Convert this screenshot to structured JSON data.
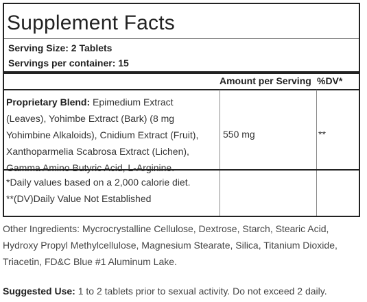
{
  "panel": {
    "title": "Supplement Facts",
    "serving_size": "Serving Size: 2 Tablets",
    "servings_per_container": "Servings per container: 15",
    "col_amount": "Amount per Serving",
    "col_dv": "%DV*",
    "blend": {
      "label": "Proprietary Blend:",
      "line1": " Epimedium Extract",
      "line2": "(Leaves), Yohimbe Extract (Bark) (8 mg",
      "line3": "Yohimbine Alkaloids), Cnidium Extract (Fruit),",
      "line4": "Xanthoparmelia Scabrosa Extract (Lichen),",
      "line5": "Gamma Amino Butyric Acid, L-Arginine.",
      "amount": "550 mg",
      "dv": "**"
    },
    "footnote1": "*Daily values based on a 2,000 calorie diet.",
    "footnote2": "**(DV)Daily Value Not Established"
  },
  "other_ingredients": {
    "line1": "Other Ingredients: Mycrocrystalline Cellulose, Dextrose, Starch, Stearic Acid,",
    "line2": "Hydroxy Propyl Methylcellulose, Magnesium Stearate, Silica, Titanium Dioxide,",
    "line3": "Triacetin, FD&C Blue #1 Aluminum Lake."
  },
  "suggested_use": {
    "label": "Suggested Use:",
    "text": " 1 to 2 tablets prior to sexual activity. Do not exceed 2 daily."
  }
}
